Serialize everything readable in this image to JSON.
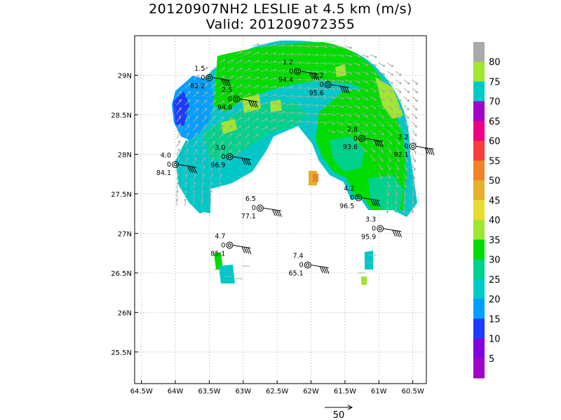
{
  "title_line1": "20120907NH2 LESLIE at 4.5 km (m/s)",
  "title_line2": "Valid: 201209072355",
  "x_ticks": [
    {
      "lon": -64.5,
      "label": "64.5W"
    },
    {
      "lon": -64,
      "label": "64W"
    },
    {
      "lon": -63.5,
      "label": "63.5W"
    },
    {
      "lon": -63,
      "label": "63W"
    },
    {
      "lon": -62.5,
      "label": "62.5W"
    },
    {
      "lon": -62,
      "label": "62W"
    },
    {
      "lon": -61.5,
      "label": "61.5W"
    },
    {
      "lon": -61,
      "label": "61W"
    },
    {
      "lon": -60.5,
      "label": "60.5W"
    }
  ],
  "y_ticks": [
    {
      "lat": 29,
      "label": "29N"
    },
    {
      "lat": 28.5,
      "label": "28.5N"
    },
    {
      "lat": 28,
      "label": "28N"
    },
    {
      "lat": 27.5,
      "label": "27.5N"
    },
    {
      "lat": 27,
      "label": "27N"
    },
    {
      "lat": 26.5,
      "label": "26.5N"
    },
    {
      "lat": 26,
      "label": "26N"
    },
    {
      "lat": 25.5,
      "label": "25.5N"
    }
  ],
  "colorbar": {
    "levels": [
      5,
      10,
      15,
      20,
      25,
      30,
      35,
      40,
      45,
      50,
      55,
      60,
      65,
      70,
      75,
      80
    ],
    "colors": [
      "#a000c8",
      "#8200dc",
      "#1e3cff",
      "#00a0ff",
      "#00c8c8",
      "#00d28c",
      "#00dc00",
      "#a0e632",
      "#e6dc32",
      "#e6af2d",
      "#f08228",
      "#fa3c3c",
      "#f00082",
      "#a000c8",
      "#00c8c8",
      "#a0e632",
      "#aaaaaa"
    ]
  },
  "reference_vector": {
    "label": "50"
  },
  "stations": [
    {
      "lon": -63.5,
      "lat": 28.97,
      "top": "1.5",
      "mid": "0",
      "bot": "82.2"
    },
    {
      "lon": -62.2,
      "lat": 29.05,
      "top": "1.2",
      "mid": "0",
      "bot": "94.4"
    },
    {
      "lon": -61.75,
      "lat": 28.88,
      "top": "2.2",
      "mid": "0",
      "bot": "95.6"
    },
    {
      "lon": -63.1,
      "lat": 28.7,
      "top": "2.5",
      "mid": "0",
      "bot": "94.6"
    },
    {
      "lon": -61.25,
      "lat": 28.2,
      "top": "2.8",
      "mid": "0",
      "bot": "93.6"
    },
    {
      "lon": -60.5,
      "lat": 28.1,
      "top": "2.2",
      "mid": "0",
      "bot": "92.1"
    },
    {
      "lon": -63.2,
      "lat": 27.97,
      "top": "3.0",
      "mid": "0",
      "bot": "96.9"
    },
    {
      "lon": -64,
      "lat": 27.87,
      "top": "4.0",
      "mid": "0",
      "bot": "84.1"
    },
    {
      "lon": -62.75,
      "lat": 27.32,
      "top": "6.5",
      "mid": "0",
      "bot": "77.1"
    },
    {
      "lon": -61.3,
      "lat": 27.45,
      "top": "4.2",
      "mid": "0",
      "bot": "96.5"
    },
    {
      "lon": -60.98,
      "lat": 27.06,
      "top": "3.3",
      "mid": "0",
      "bot": "95.9"
    },
    {
      "lon": -63.2,
      "lat": 26.85,
      "top": "4.7",
      "mid": "0",
      "bot": "85.1"
    },
    {
      "lon": -62.05,
      "lat": 26.6,
      "top": "7.4",
      "mid": "0",
      "bot": "65.1"
    }
  ]
}
